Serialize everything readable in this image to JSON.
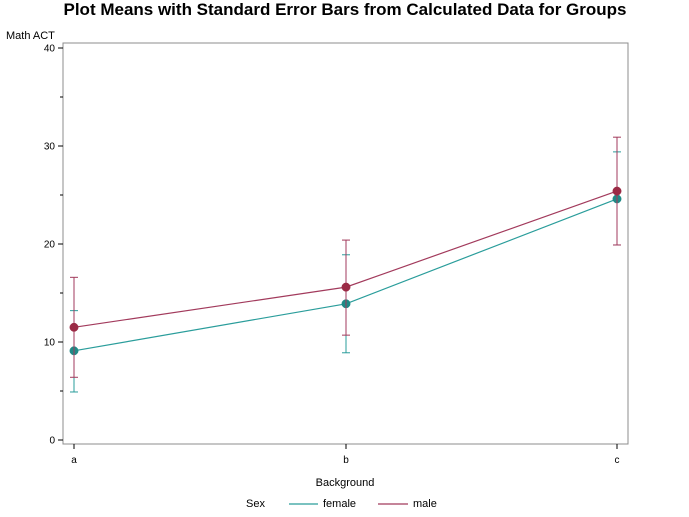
{
  "chart_data": {
    "type": "line",
    "title": "Plot Means with Standard Error Bars from Calculated Data for Groups",
    "xlabel": "Background",
    "ylabel": "Math ACT",
    "categories": [
      "a",
      "b",
      "c"
    ],
    "ylim": [
      0,
      40
    ],
    "yticks": [
      0,
      10,
      20,
      30,
      40
    ],
    "grid": false,
    "legend": {
      "title": "Sex",
      "position": "bottom"
    },
    "series": [
      {
        "name": "female",
        "color": "#2a9d9b",
        "marker_color": "#1f8a86",
        "values": [
          9.1,
          13.9,
          24.6
        ],
        "lower": [
          4.9,
          8.9,
          19.9
        ],
        "upper": [
          13.2,
          18.9,
          29.4
        ]
      },
      {
        "name": "male",
        "color": "#a23a5c",
        "marker_color": "#9b2a45",
        "values": [
          11.5,
          15.6,
          25.4
        ],
        "lower": [
          6.4,
          10.7,
          19.9
        ],
        "upper": [
          16.6,
          20.4,
          30.9
        ]
      }
    ]
  }
}
